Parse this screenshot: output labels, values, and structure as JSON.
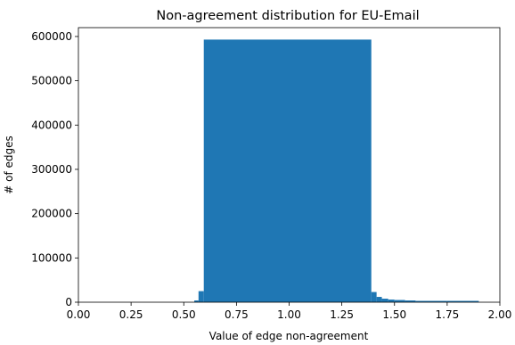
{
  "chart_data": {
    "type": "bar",
    "title": "Non-agreement distribution for EU-Email",
    "xlabel": "Value of edge non-agreement",
    "ylabel": "# of edges",
    "xlim": [
      0.0,
      2.0
    ],
    "ylim": [
      0,
      620000
    ],
    "xticks": [
      "0.00",
      "0.25",
      "0.50",
      "0.75",
      "1.00",
      "1.25",
      "1.50",
      "1.75",
      "2.00"
    ],
    "xtick_values": [
      0.0,
      0.25,
      0.5,
      0.75,
      1.0,
      1.25,
      1.5,
      1.75,
      2.0
    ],
    "yticks": [
      "0",
      "100000",
      "200000",
      "300000",
      "400000",
      "500000",
      "600000"
    ],
    "ytick_values": [
      0,
      100000,
      200000,
      300000,
      400000,
      500000,
      600000
    ],
    "bar_color": "#1f77b4",
    "grid": false,
    "bins": [
      {
        "x0": 0.55,
        "x1": 0.57,
        "value": 4000
      },
      {
        "x0": 0.57,
        "x1": 0.595,
        "value": 25000
      },
      {
        "x0": 0.595,
        "x1": 1.39,
        "value": 593000
      },
      {
        "x0": 1.39,
        "x1": 1.415,
        "value": 23000
      },
      {
        "x0": 1.415,
        "x1": 1.44,
        "value": 12000
      },
      {
        "x0": 1.44,
        "x1": 1.47,
        "value": 8000
      },
      {
        "x0": 1.47,
        "x1": 1.5,
        "value": 6000
      },
      {
        "x0": 1.5,
        "x1": 1.55,
        "value": 5000
      },
      {
        "x0": 1.55,
        "x1": 1.6,
        "value": 4000
      },
      {
        "x0": 1.6,
        "x1": 1.75,
        "value": 3000
      },
      {
        "x0": 1.75,
        "x1": 1.9,
        "value": 3000
      }
    ]
  }
}
